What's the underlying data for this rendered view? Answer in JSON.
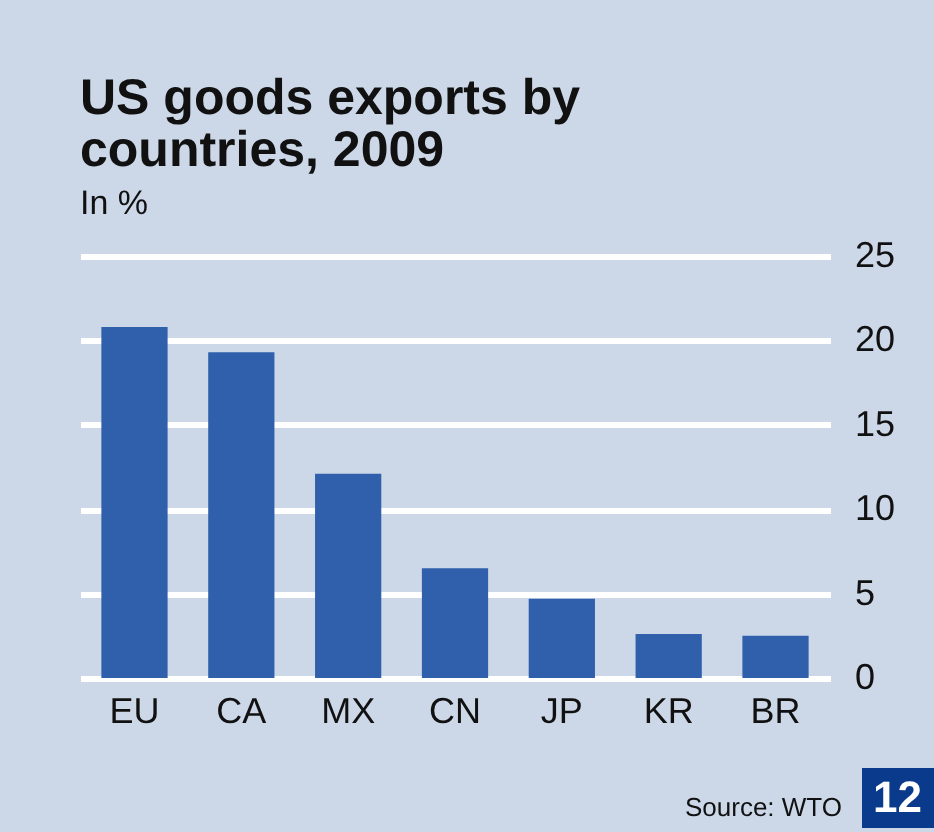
{
  "chart_data": {
    "type": "bar",
    "title": "US goods exports by countries, 2009",
    "subtitle": "In %",
    "categories": [
      "EU",
      "CA",
      "MX",
      "CN",
      "JP",
      "KR",
      "BR"
    ],
    "values": [
      20.8,
      19.3,
      12.1,
      6.5,
      4.7,
      2.6,
      2.5
    ],
    "color": "#3060ac",
    "ylim": [
      0,
      25
    ],
    "yticks": [
      0,
      5,
      10,
      15,
      20,
      25
    ],
    "grid": "y",
    "annotations": [
      "Source: WTO",
      "12"
    ]
  }
}
